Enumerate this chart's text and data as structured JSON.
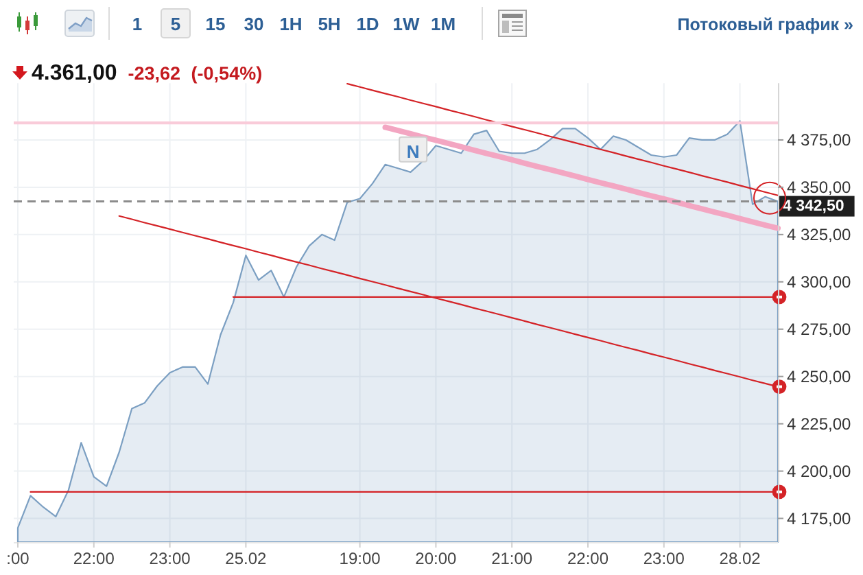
{
  "chart_data": {
    "type": "area",
    "title": "4.361,00",
    "subtitle": "-23,62 (-0,54%)",
    "categories": [
      ":00",
      null,
      null,
      null,
      null,
      null,
      "22:00",
      null,
      null,
      null,
      null,
      null,
      "23:00",
      null,
      null,
      null,
      null,
      null,
      "25.02",
      null,
      null,
      null,
      null,
      null,
      null,
      null,
      null,
      "19:00",
      null,
      null,
      null,
      null,
      null,
      "20:00",
      null,
      null,
      null,
      null,
      null,
      "21:00",
      null,
      null,
      null,
      null,
      null,
      "22:00",
      null,
      null,
      null,
      null,
      null,
      "23:00",
      null,
      null,
      null,
      null,
      null,
      "28.02",
      null,
      null,
      null
    ],
    "series": [
      {
        "color": "#7b9fc2",
        "values": [
          4170,
          4187,
          4181,
          4176,
          4190,
          4215,
          4197,
          4192,
          4210,
          4233,
          4236,
          4245,
          4252,
          4255,
          4255,
          4246,
          4272,
          4289,
          4314,
          4301,
          4306,
          4292,
          4308,
          4319,
          4325,
          4322,
          4342,
          4344,
          4352,
          4362,
          4360,
          4358,
          4364,
          4372,
          4370,
          4368,
          4378,
          4380,
          4369,
          4368,
          4368,
          4370,
          4375,
          4381,
          4381,
          4376,
          4370,
          4377,
          4375,
          4371,
          4367,
          4366,
          4367,
          4376,
          4375,
          4375,
          4378,
          4385,
          4341,
          4345,
          4342.5
        ]
      },
      {
        "type": "line",
        "color": "#d42327",
        "values": [
          null,
          null,
          null,
          null,
          null,
          null,
          null,
          null,
          null,
          null,
          null,
          null,
          null,
          null,
          null,
          null,
          null,
          null,
          null,
          null,
          null,
          null,
          null,
          null,
          null,
          null,
          4404.7,
          4403.0,
          4401.2,
          4399.5,
          4397.8,
          4396.0,
          4394.3,
          4392.6,
          4390.8,
          4389.1,
          4387.4,
          4385.6,
          4383.9,
          4382.1,
          4380.4,
          4378.7,
          4376.9,
          4375.2,
          4373.5,
          4371.7,
          4370.0,
          4368.3,
          4366.5,
          4364.8,
          4363.1,
          4361.3,
          4359.6,
          4357.9,
          4356.1,
          4354.4,
          4352.7,
          4350.9,
          4349.2,
          4347.4,
          4345.7
        ]
      },
      {
        "type": "line",
        "color": "#d42327",
        "values": [
          null,
          null,
          null,
          null,
          null,
          null,
          null,
          null,
          4334.8,
          4333.1,
          4331.3,
          4329.6,
          4327.9,
          4326.1,
          4324.4,
          4322.7,
          4320.9,
          4319.2,
          4317.5,
          4315.7,
          4314.0,
          4312.2,
          4310.5,
          4308.8,
          4307.0,
          4305.3,
          4303.6,
          4301.8,
          4300.1,
          4298.4,
          4296.6,
          4294.9,
          4293.2,
          4291.4,
          4289.7,
          4288.0,
          4286.2,
          4284.5,
          4282.8,
          4281.0,
          4279.3,
          4277.5,
          4275.8,
          4274.1,
          4272.3,
          4270.6,
          4268.9,
          4267.1,
          4265.4,
          4263.7,
          4261.9,
          4260.2,
          4258.5,
          4256.7,
          4255.0,
          4253.2,
          4251.5,
          4249.8,
          4248.0,
          4246.3,
          4244.6
        ]
      },
      {
        "type": "line",
        "color": "#d42327",
        "values": [
          null,
          null,
          null,
          null,
          null,
          null,
          null,
          null,
          null,
          null,
          null,
          null,
          null,
          null,
          null,
          null,
          null,
          4292,
          4292,
          4292,
          4292,
          4292,
          4292,
          4292,
          4292,
          4292,
          4292,
          4292,
          4292,
          4292,
          4292,
          4292,
          4292,
          4292,
          4292,
          4292,
          4292,
          4292,
          4292,
          4292,
          4292,
          4292,
          4292,
          4292,
          4292,
          4292,
          4292,
          4292,
          4292,
          4292,
          4292,
          4292,
          4292,
          4292,
          4292,
          4292,
          4292,
          4292,
          4292,
          4292,
          4292
        ]
      },
      {
        "type": "line",
        "color": "#d42327",
        "values": [
          null,
          4189,
          4189,
          4189,
          4189,
          4189,
          4189,
          4189,
          4189,
          4189,
          4189,
          4189,
          4189,
          4189,
          4189,
          4189,
          4189,
          4189,
          4189,
          4189,
          4189,
          4189,
          4189,
          4189,
          4189,
          4189,
          4189,
          4189,
          4189,
          4189,
          4189,
          4189,
          4189,
          4189,
          4189,
          4189,
          4189,
          4189,
          4189,
          4189,
          4189,
          4189,
          4189,
          4189,
          4189,
          4189,
          4189,
          4189,
          4189,
          4189,
          4189,
          4189,
          4189,
          4189,
          4189,
          4189,
          4189,
          4189,
          4189,
          4189,
          4189
        ]
      },
      {
        "type": "line",
        "color": "#f3a6c2",
        "values": [
          null,
          null,
          null,
          null,
          null,
          null,
          null,
          null,
          null,
          null,
          null,
          null,
          null,
          null,
          null,
          null,
          null,
          null,
          null,
          null,
          null,
          null,
          null,
          null,
          null,
          null,
          null,
          null,
          null,
          4381.7,
          4380.0,
          4378.3,
          4376.5,
          4374.8,
          4373.1,
          4371.4,
          4369.6,
          4367.9,
          4366.2,
          4364.5,
          4362.7,
          4361.0,
          4359.3,
          4357.6,
          4355.9,
          4354.1,
          4352.4,
          4350.7,
          4349.0,
          4347.2,
          4345.5,
          4343.8,
          4342.1,
          4340.3,
          4338.6,
          4336.9,
          4335.2,
          4333.4,
          4331.7,
          4330.0,
          4328.3
        ]
      }
    ],
    "annotations": [
      "1",
      "5",
      "15",
      "30",
      "1H",
      "5H",
      "1D",
      "1W",
      "1M",
      "Потоковый график »",
      {
        "text": "N",
        "y": 4370
      }
    ],
    "ylim": [
      4162.5,
      4405
    ],
    "yticks": [
      {
        "value": 4175,
        "label": "4 175,00"
      },
      {
        "value": 4200,
        "label": "4 200,00"
      },
      {
        "value": 4225,
        "label": "4 225,00"
      },
      {
        "value": 4250,
        "label": "4 250,00"
      },
      {
        "value": 4275,
        "label": "4 275,00"
      },
      {
        "value": 4300,
        "label": "4 300,00"
      },
      {
        "value": 4325,
        "label": "4 325,00"
      },
      {
        "value": 4350,
        "label": "4 350,00"
      },
      {
        "value": 4375,
        "label": "4 375,00"
      }
    ],
    "ref_lines": [
      {
        "axis": "y",
        "value": 4384,
        "color": "#f9cbd9"
      },
      {
        "axis": "y",
        "value": 4342.5,
        "label": "4 342,50",
        "color": "#8c8c8c",
        "line_style": "dashed"
      }
    ],
    "grid": true
  }
}
